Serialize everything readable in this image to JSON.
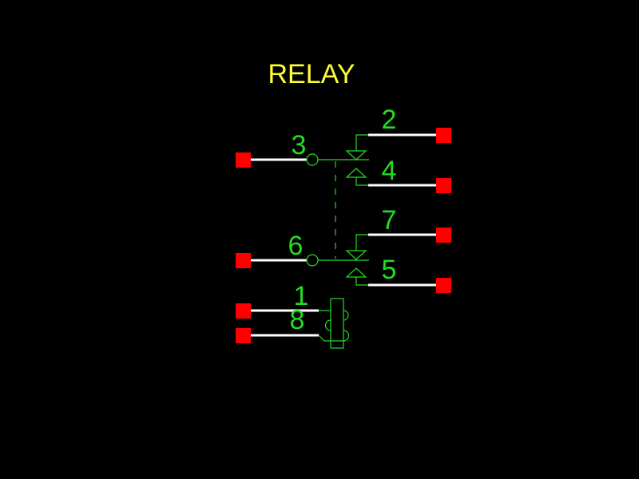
{
  "title": "RELAY",
  "colors": {
    "background": "#000000",
    "title": "#ffff33",
    "label": "#22dd22",
    "symbol": "#22dd22",
    "lead": "#ffffff",
    "pad": "#ff0000"
  },
  "pins": [
    {
      "number": "3",
      "side": "left"
    },
    {
      "number": "6",
      "side": "left"
    },
    {
      "number": "1",
      "side": "left"
    },
    {
      "number": "8",
      "side": "left"
    },
    {
      "number": "2",
      "side": "right"
    },
    {
      "number": "4",
      "side": "right"
    },
    {
      "number": "7",
      "side": "right"
    },
    {
      "number": "5",
      "side": "right"
    }
  ]
}
